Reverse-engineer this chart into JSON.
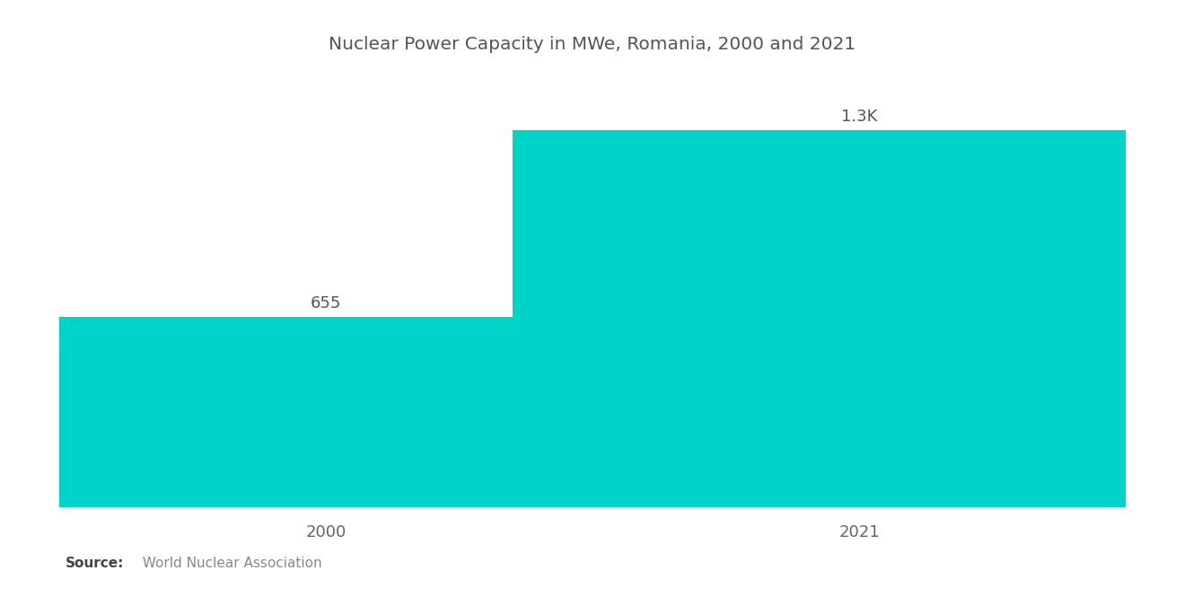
{
  "title": "Nuclear Power Capacity in MWe, Romania, 2000 and 2021",
  "categories": [
    "2000",
    "2021"
  ],
  "values": [
    655,
    1300
  ],
  "bar_labels": [
    "655",
    "1.3K"
  ],
  "bar_color": "#00D4C8",
  "background_color": "#ffffff",
  "title_fontsize": 14.5,
  "label_fontsize": 13,
  "tick_fontsize": 13,
  "source_bold": "Source:",
  "source_text": "  World Nuclear Association",
  "ylim": [
    0,
    1500
  ],
  "bar_width": 0.65,
  "bar_positions": [
    0.25,
    0.75
  ],
  "xlim": [
    0.0,
    1.0
  ]
}
